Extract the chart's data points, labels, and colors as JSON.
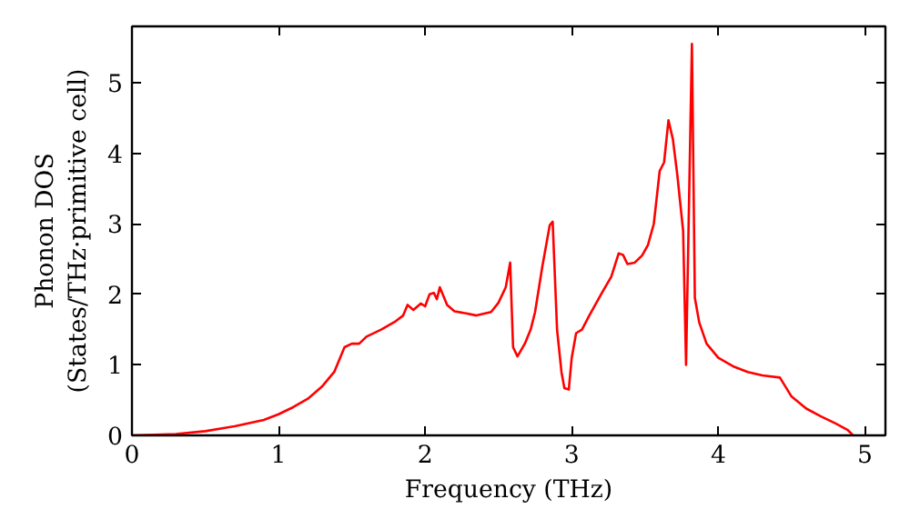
{
  "chart_data": {
    "type": "line",
    "xlabel": "Frequency (THz)",
    "ylabel": "Phonon DOS\n(States/THz·primitive cell)",
    "xlim": [
      0,
      5.14
    ],
    "ylim": [
      0,
      5.8
    ],
    "xticks": [
      0,
      1,
      2,
      3,
      4,
      5
    ],
    "yticks": [
      0,
      1,
      2,
      3,
      4,
      5
    ],
    "grid": false,
    "line_style": "solid",
    "marker": "none",
    "series": [
      {
        "color": "#ff0000",
        "x": [
          0,
          0.3,
          0.5,
          0.7,
          0.9,
          1.0,
          1.1,
          1.2,
          1.3,
          1.38,
          1.45,
          1.5,
          1.55,
          1.6,
          1.7,
          1.8,
          1.85,
          1.88,
          1.92,
          1.97,
          2.0,
          2.03,
          2.06,
          2.08,
          2.1,
          2.15,
          2.2,
          2.28,
          2.35,
          2.45,
          2.5,
          2.55,
          2.58,
          2.6,
          2.63,
          2.68,
          2.72,
          2.75,
          2.8,
          2.85,
          2.87,
          2.9,
          2.93,
          2.95,
          2.98,
          3.0,
          3.03,
          3.07,
          3.12,
          3.2,
          3.27,
          3.32,
          3.35,
          3.38,
          3.43,
          3.48,
          3.52,
          3.56,
          3.6,
          3.63,
          3.66,
          3.69,
          3.72,
          3.76,
          3.78,
          3.82,
          3.84,
          3.87,
          3.92,
          4.0,
          4.1,
          4.2,
          4.3,
          4.42,
          4.5,
          4.6,
          4.7,
          4.8,
          4.88,
          4.92
        ],
        "values": [
          0,
          0.02,
          0.06,
          0.13,
          0.22,
          0.3,
          0.4,
          0.52,
          0.7,
          0.9,
          1.25,
          1.3,
          1.3,
          1.4,
          1.5,
          1.62,
          1.7,
          1.85,
          1.78,
          1.87,
          1.83,
          2.0,
          2.02,
          1.93,
          2.1,
          1.85,
          1.76,
          1.73,
          1.7,
          1.75,
          1.88,
          2.1,
          2.45,
          1.25,
          1.12,
          1.3,
          1.5,
          1.75,
          2.4,
          2.98,
          3.03,
          1.5,
          0.9,
          0.67,
          0.65,
          1.1,
          1.45,
          1.5,
          1.7,
          2.0,
          2.25,
          2.58,
          2.56,
          2.43,
          2.45,
          2.55,
          2.7,
          3.0,
          3.75,
          3.87,
          4.47,
          4.2,
          3.7,
          2.9,
          1.0,
          5.55,
          1.95,
          1.6,
          1.3,
          1.1,
          0.98,
          0.9,
          0.85,
          0.82,
          0.55,
          0.38,
          0.27,
          0.17,
          0.08,
          0
        ]
      }
    ]
  }
}
